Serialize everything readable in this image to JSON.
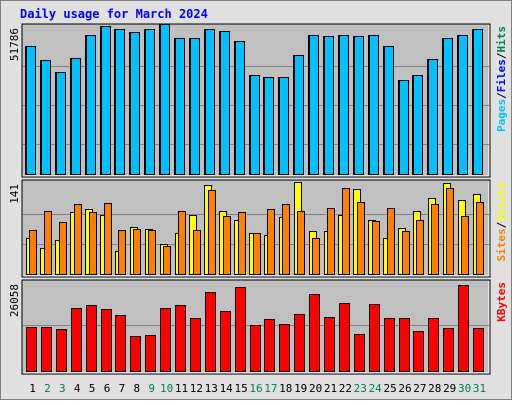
{
  "chart_data": [
    {
      "type": "bar",
      "title": "Daily usage for March 2024",
      "categories": [
        "1",
        "2",
        "3",
        "4",
        "5",
        "6",
        "7",
        "8",
        "9",
        "10",
        "11",
        "12",
        "13",
        "14",
        "15",
        "16",
        "17",
        "18",
        "19",
        "20",
        "21",
        "22",
        "23",
        "24",
        "25",
        "26",
        "27",
        "28",
        "29",
        "30",
        "31"
      ],
      "weekend_days": [
        "2",
        "3",
        "9",
        "10",
        "16",
        "17",
        "23",
        "24",
        "30",
        "31"
      ],
      "y_tick_label": "51786",
      "ylim": [
        0,
        51786
      ],
      "ylabel_parts": [
        "Pages",
        "/",
        "Files",
        "/",
        "Hits"
      ],
      "series": [
        {
          "name": "Hits",
          "color": "#00805c",
          "values": [
            45000,
            40000,
            36000,
            41000,
            49000,
            52000,
            51000,
            50000,
            51000,
            53000,
            48000,
            48000,
            51000,
            50500,
            47000,
            35000,
            34000,
            34000,
            42000,
            49000,
            48500,
            49000,
            48500,
            49000,
            45000,
            33000,
            35000,
            40500,
            48000,
            49000,
            51000
          ]
        },
        {
          "name": "Files",
          "color": "#0000ff",
          "values": [
            45000,
            40000,
            36000,
            41000,
            49000,
            52000,
            51000,
            50000,
            51000,
            53000,
            48000,
            48000,
            51000,
            50500,
            47000,
            35000,
            34000,
            34000,
            42000,
            49000,
            48500,
            49000,
            48500,
            49000,
            45000,
            33000,
            35000,
            40500,
            48000,
            49000,
            51000
          ]
        },
        {
          "name": "Pages",
          "color": "#00c0ff",
          "values": [
            45000,
            40000,
            36000,
            41000,
            49000,
            52000,
            51000,
            50000,
            51000,
            53000,
            48000,
            48000,
            51000,
            50500,
            47000,
            35000,
            34000,
            34000,
            42000,
            49000,
            48500,
            49000,
            48500,
            49000,
            45000,
            33000,
            35000,
            40500,
            48000,
            49000,
            51000
          ]
        }
      ],
      "grid": true,
      "grid_fractions": [
        0.265,
        0.53,
        0.795
      ]
    },
    {
      "type": "bar",
      "y_tick_label": "141",
      "ylim": [
        0,
        141
      ],
      "ylabel_parts": [
        "Sites",
        "/",
        "Visits"
      ],
      "series": [
        {
          "name": "Visits",
          "color": "#ffff00",
          "values": [
            56,
            40,
            52,
            96,
            100,
            92,
            36,
            73,
            69,
            46,
            64,
            92,
            138,
            98,
            84,
            64,
            60,
            88,
            142,
            66,
            66,
            92,
            132,
            84,
            56,
            72,
            98,
            118,
            141,
            114,
            124
          ]
        },
        {
          "name": "Sites",
          "color": "#ff8000",
          "values": [
            68,
            98,
            80,
            108,
            96,
            110,
            68,
            70,
            68,
            44,
            98,
            68,
            130,
            90,
            96,
            64,
            100,
            108,
            98,
            56,
            102,
            134,
            112,
            82,
            102,
            66,
            84,
            108,
            134,
            90,
            112
          ]
        }
      ],
      "grid": true,
      "grid_fractions": [
        0.34,
        0.67
      ]
    },
    {
      "type": "bar",
      "y_tick_label": "26058",
      "ylim": [
        0,
        26058
      ],
      "ylabel_parts": [
        "KBytes"
      ],
      "series": [
        {
          "name": "KBytes",
          "color": "#ff0000",
          "values": [
            12900,
            12900,
            12500,
            18600,
            19500,
            18400,
            16600,
            10400,
            10800,
            18700,
            19400,
            15800,
            23400,
            17800,
            25000,
            13500,
            15500,
            13900,
            16800,
            22800,
            16100,
            20000,
            11000,
            19800,
            15600,
            15600,
            11800,
            15600,
            12700,
            25400,
            12700
          ]
        }
      ],
      "grid": true,
      "grid_fractions": [
        0.48
      ]
    }
  ],
  "colors": {
    "panel_bg": "#c0c0c0",
    "outer_bg": "#e0e0e0",
    "title": "#0000ff",
    "weekday_label": "#000000",
    "weekend_label": "#00805c",
    "grid": "#808080"
  }
}
